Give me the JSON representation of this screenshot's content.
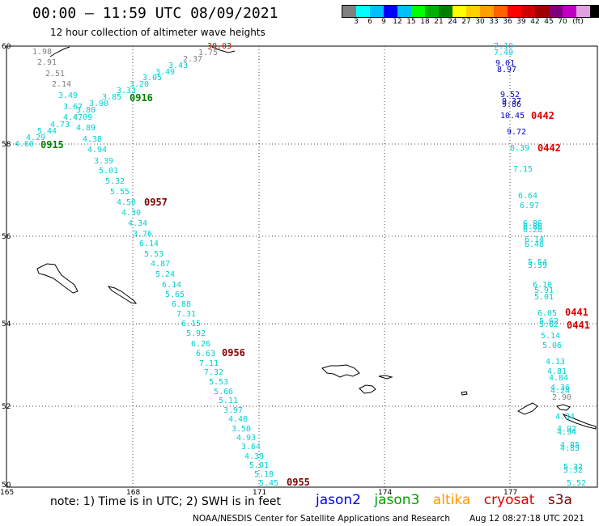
{
  "header": {
    "title": "00:00 – 11:59 UTC 08/09/2021",
    "subtitle": "12 hour collection of altimeter wave heights"
  },
  "legend": {
    "unit": "(ft)",
    "colors": [
      "#808080",
      "#00ffff",
      "#00bfff",
      "#0000ff",
      "#00c0ff",
      "#00ff00",
      "#00b000",
      "#008000",
      "#ffff00",
      "#ffd000",
      "#ffa000",
      "#ff6000",
      "#ff0000",
      "#d00000",
      "#a00000",
      "#800080",
      "#c000c0",
      "#e0a0e0",
      "#000000"
    ],
    "ticks": [
      "3",
      "6",
      "9",
      "12",
      "15",
      "18",
      "21",
      "24",
      "27",
      "30",
      "33",
      "36",
      "39",
      "42",
      "45",
      "70"
    ]
  },
  "axes": {
    "lon_labels": [
      "165",
      "168",
      "171",
      "174",
      "177"
    ],
    "lat_labels": [
      "60",
      "58",
      "56",
      "54",
      "52",
      "50"
    ]
  },
  "tracks": {
    "track_a": {
      "color": "#808080",
      "labels": [
        "1.98",
        "2.91",
        "2.51",
        "2.14"
      ]
    },
    "track_b": {
      "color": "#00d0d0",
      "labels": [
        "1.75",
        "2.37",
        "3.43",
        "3.49",
        "3.20",
        "3.05",
        "3.33",
        "3.85",
        "3.90",
        "3.80",
        "3.67",
        "3.49",
        "4.09",
        "4.47",
        "4.73",
        "4.89",
        "5.44",
        "4.29",
        "4.60",
        "4.38",
        "4.94",
        "3.39",
        "5.01",
        "5.32",
        "5.55",
        "4.50",
        "4.30",
        "4.34",
        "3.76",
        "6.14",
        "5.53",
        "4.87",
        "5.24",
        "6.14",
        "5.65",
        "6.88",
        "7.31",
        "6.15",
        "5.92",
        "6.26",
        "6.63",
        "7.11",
        "7.32",
        "5.53",
        "5.66",
        "5.11",
        "3.97",
        "4.40",
        "3.50",
        "4.93",
        "3.64",
        "4.39",
        "5.01",
        "5.18",
        "5.45"
      ]
    },
    "track_c": {
      "color": "#00d0d0",
      "labels": [
        "7.10",
        "7.49",
        "8.39",
        "7.15",
        "6.64",
        "6.97",
        "6.86",
        "6.86",
        "6.28",
        "6.14",
        "6.48",
        "5.54",
        "5.59",
        "6.10",
        "5.91",
        "5.01",
        "6.05",
        "5.62",
        "5.62",
        "5.14",
        "5.06",
        "4.13",
        "4.81",
        "4.84",
        "4.36",
        "4.24",
        "4.34",
        "4.92",
        "4.94",
        "4.85",
        "4.85",
        "5.32",
        "5.32",
        "5.52"
      ]
    },
    "track_c_blue": {
      "color": "#0000c0",
      "labels": [
        "9.01",
        "8.97",
        "9.52",
        "9.37",
        "9.86",
        "10.45",
        "9.72"
      ]
    },
    "track_c_gray": {
      "color": "#808080",
      "labels": [
        "2.90"
      ]
    },
    "red_value": "30.03"
  },
  "time_tags": {
    "t0916": "0916",
    "t0915": "0915",
    "t0957": "0957",
    "t0956": "0956",
    "t0955": "0955",
    "t0442a": "0442",
    "t0442b": "0442",
    "t0441a": "0441",
    "t0441b": "0441"
  },
  "footer": {
    "note": "note: 1) Time is in UTC; 2) SWH is in feet",
    "sats": [
      {
        "name": "jason2",
        "color": "#0000ff"
      },
      {
        "name": "jason3",
        "color": "#00a000"
      },
      {
        "name": "altika",
        "color": "#ff9900"
      },
      {
        "name": "cryosat",
        "color": "#e00000"
      },
      {
        "name": "s3a",
        "color": "#800000"
      }
    ],
    "credit": "NOAA/NESDIS Center for Satellite Applications and Research",
    "stamp": "Aug 12 08:27:18 UTC 2021"
  }
}
